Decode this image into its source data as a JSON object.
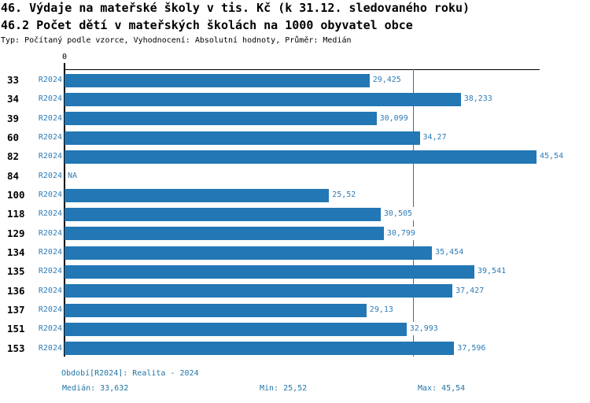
{
  "header": {
    "title1": "46. Výdaje na mateřské školy v tis. Kč (k 31.12. sledovaného roku)",
    "title2": "46.2 Počet dětí v mateřských školách na 1000 obyvatel obce",
    "subtitle": "Typ: Počítaný podle vzorce, Vyhodnocení: Absolutní hodnoty, Průměr: Medián"
  },
  "chart_data": {
    "type": "bar",
    "orientation": "horizontal",
    "title": "46. Výdaje na mateřské školy v tis. Kč (k 31.12. sledovaného roku)",
    "subtitle": "46.2 Počet dětí v mateřských školách na 1000 obyvatel obce",
    "series_name": "R2024",
    "origin_label": "0",
    "categories": [
      "33",
      "34",
      "39",
      "60",
      "82",
      "84",
      "100",
      "118",
      "129",
      "134",
      "135",
      "136",
      "137",
      "151",
      "153"
    ],
    "values": [
      29.425,
      38.233,
      30.099,
      34.27,
      45.54,
      null,
      25.52,
      30.505,
      30.799,
      35.454,
      39.541,
      37.427,
      29.13,
      32.993,
      37.596
    ],
    "value_labels": [
      "29,425",
      "38,233",
      "30,099",
      "34,27",
      "45,54",
      "NA",
      "25,52",
      "30,505",
      "30,799",
      "35,454",
      "39,541",
      "37,427",
      "29,13",
      "32,993",
      "37,596"
    ],
    "na_label": "NA",
    "median": 33.632,
    "min": 25.52,
    "max": 45.54,
    "xlim": [
      0,
      45.54
    ],
    "grid": false,
    "legend_position": "none",
    "median_line": true
  },
  "footer": {
    "period": "Období[R2024]: Realita - 2024",
    "median": "Medián: 33,632",
    "min": "Min: 25,52",
    "max": "Max: 45,54"
  },
  "colors": {
    "bar": "#2277b4",
    "label_text": "#2e7cb8",
    "footer_text": "#1f74a3",
    "axis": "#000000",
    "background": "#ffffff"
  }
}
